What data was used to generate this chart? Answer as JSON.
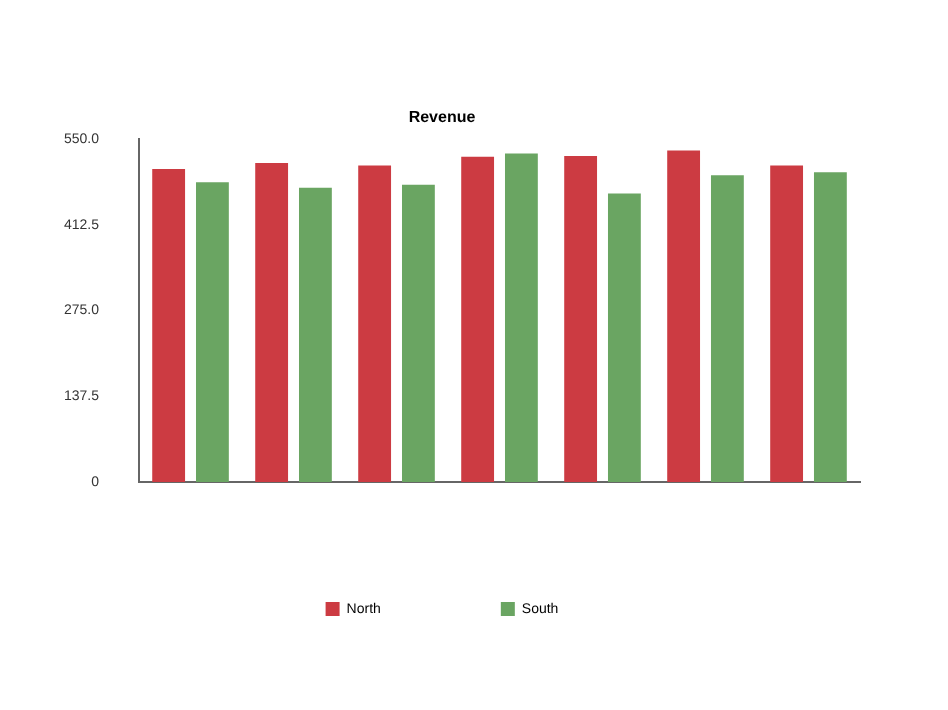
{
  "chart_data": {
    "type": "bar",
    "title": "Revenue",
    "categories": [
      null,
      null,
      null,
      null,
      null,
      null,
      null
    ],
    "series": [
      {
        "name": "North",
        "color": "#cc3b42",
        "values": [
          502,
          512,
          508,
          522,
          523,
          532,
          508
        ]
      },
      {
        "name": "South",
        "color": "#6aa562",
        "values": [
          481,
          472,
          477,
          527,
          463,
          492,
          497
        ]
      }
    ],
    "ylim": [
      0,
      550
    ],
    "yticks": [
      0,
      {
        "value": 137.5,
        "label": "137.5"
      },
      {
        "value": 275,
        "label": "275.0"
      },
      {
        "value": 412.5,
        "label": "412.5"
      },
      {
        "value": 550,
        "label": "550.0"
      }
    ],
    "legend": "bottom"
  }
}
